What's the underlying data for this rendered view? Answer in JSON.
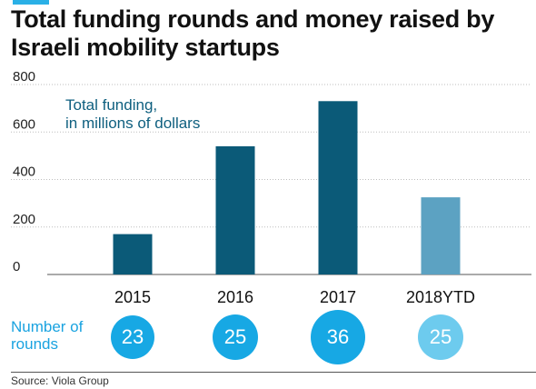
{
  "title": "Total funding rounds and money raised by Israeli mobility startups",
  "colors": {
    "accent": "#2ab0e6",
    "bar_main": "#0b5a78",
    "bar_ytd": "#5ca2c2",
    "bubble_main": "#17a8e4",
    "bubble_ytd": "#6dcbee",
    "annotation": "#0e5f7f",
    "rounds_label": "#1aa3e0"
  },
  "chart_data": {
    "type": "bar",
    "title": "Total funding rounds and money raised by Israeli mobility startups",
    "annotation": [
      "Total funding,",
      "in millions of dollars"
    ],
    "categories": [
      "2015",
      "2016",
      "2017",
      "2018YTD"
    ],
    "values": [
      170,
      540,
      730,
      325
    ],
    "ylim": [
      0,
      800
    ],
    "yticks": [
      0,
      200,
      400,
      600,
      800
    ],
    "grid": true,
    "xlabel": "",
    "ylabel": ""
  },
  "rounds": {
    "label_line1": "Number of",
    "label_line2": "rounds",
    "values": [
      23,
      25,
      36,
      25
    ]
  },
  "source": "Source: Viola Group"
}
